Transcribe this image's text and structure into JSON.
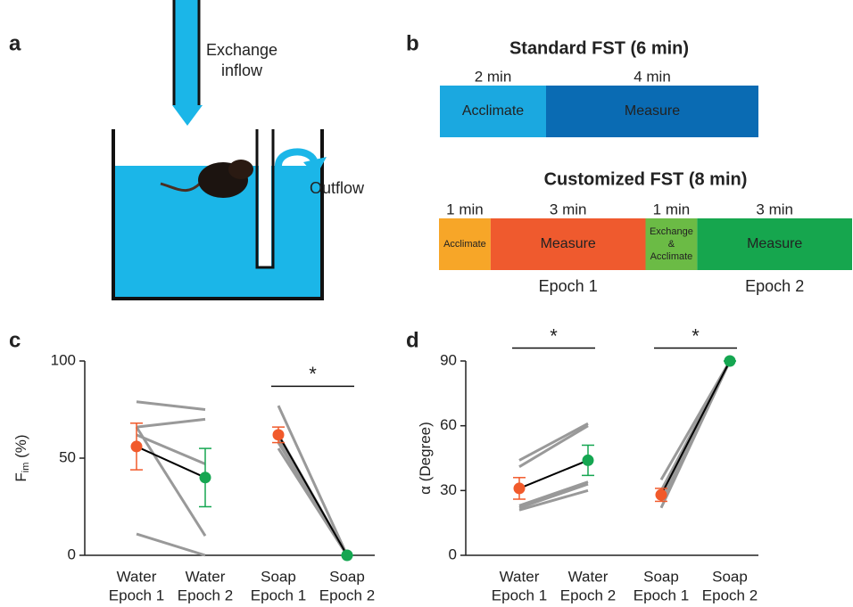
{
  "panel_labels": [
    "a",
    "b",
    "c",
    "d"
  ],
  "diagram_a": {
    "inflow_label": [
      "Exchange",
      "inflow"
    ],
    "outflow_label": "Outflow",
    "water_color": "#1bb6e8"
  },
  "timeline_b": [
    {
      "title": "Standard FST (6 min)",
      "segments": [
        {
          "duration": "2 min",
          "minutes": 2,
          "label": [
            "Acclimate"
          ],
          "color": "#1ba8e0",
          "text_color": "#111"
        },
        {
          "duration": "4 min",
          "minutes": 4,
          "label": [
            "Measure"
          ],
          "color": "#0a6bb3",
          "text_color": "#fff"
        }
      ]
    },
    {
      "title": "Customized FST (8 min)",
      "segments": [
        {
          "duration": "1 min",
          "minutes": 1,
          "label": [
            "Acclimate"
          ],
          "color": "#f7a628",
          "text_color": "#111"
        },
        {
          "duration": "3 min",
          "minutes": 3,
          "label": [
            "Measure"
          ],
          "color": "#ef5a2e",
          "text_color": "#fff",
          "epoch": "Epoch 1",
          "epoch_color": "#f15a2b"
        },
        {
          "duration": "1 min",
          "minutes": 1,
          "label": [
            "Exchange",
            "&",
            "Acclimate"
          ],
          "color": "#6bbb45",
          "text_color": "#111"
        },
        {
          "duration": "3 min",
          "minutes": 3,
          "label": [
            "Measure"
          ],
          "color": "#16a64e",
          "text_color": "#fff",
          "epoch": "Epoch 2",
          "epoch_color": "#15a651"
        }
      ]
    }
  ],
  "chart_data": [
    {
      "type": "line",
      "ylabel": "F",
      "ylabel_sub": "im",
      "ylabel_suffix": " (%)",
      "ylim": [
        0,
        100
      ],
      "yticks": [
        0,
        50,
        100
      ],
      "categories": [
        [
          "Water",
          "Epoch 1"
        ],
        [
          "Water",
          "Epoch 2"
        ],
        [
          "Soap",
          "Epoch 1"
        ],
        [
          "Soap",
          "Epoch 2"
        ]
      ],
      "category_colors": [
        "#f15a2b",
        "#15a651",
        "#f15a2b",
        "#15a651"
      ],
      "subject_color": "#999999",
      "mean_line_color": "#000000",
      "pairs": [
        {
          "subjects": [
            [
              79,
              75
            ],
            [
              66,
              70
            ],
            [
              62,
              47
            ],
            [
              66,
              10
            ],
            [
              11,
              0
            ]
          ],
          "mean": [
            56,
            40
          ],
          "error": [
            12,
            15
          ]
        },
        {
          "subjects": [
            [
              77,
              0
            ],
            [
              62,
              0
            ],
            [
              58,
              0
            ],
            [
              55,
              0
            ],
            [
              60,
              0
            ]
          ],
          "mean": [
            62,
            0
          ],
          "error": [
            4,
            0
          ],
          "significance": {
            "label": "*",
            "y": 87
          }
        }
      ]
    },
    {
      "type": "line",
      "ylabel": "α (Degree)",
      "ylim": [
        0,
        90
      ],
      "yticks": [
        0,
        30,
        60,
        90
      ],
      "categories": [
        [
          "Water",
          "Epoch 1"
        ],
        [
          "Water",
          "Epoch 2"
        ],
        [
          "Soap",
          "Epoch 1"
        ],
        [
          "Soap",
          "Epoch 2"
        ]
      ],
      "category_colors": [
        "#f15a2b",
        "#15a651",
        "#f15a2b",
        "#15a651"
      ],
      "subject_color": "#999999",
      "mean_line_color": "#000000",
      "pairs": [
        {
          "subjects": [
            [
              44,
              61
            ],
            [
              41,
              60
            ],
            [
              23,
              34
            ],
            [
              22,
              33
            ],
            [
              21,
              30
            ]
          ],
          "mean": [
            31,
            44
          ],
          "error": [
            5,
            7
          ],
          "significance": {
            "label": "*",
            "y": 96
          }
        },
        {
          "subjects": [
            [
              35,
              90
            ],
            [
              30,
              90
            ],
            [
              25,
              90
            ],
            [
              22,
              90
            ],
            [
              28,
              90
            ]
          ],
          "mean": [
            28,
            90
          ],
          "error": [
            3,
            0
          ],
          "significance": {
            "label": "*",
            "y": 96
          }
        }
      ]
    }
  ]
}
